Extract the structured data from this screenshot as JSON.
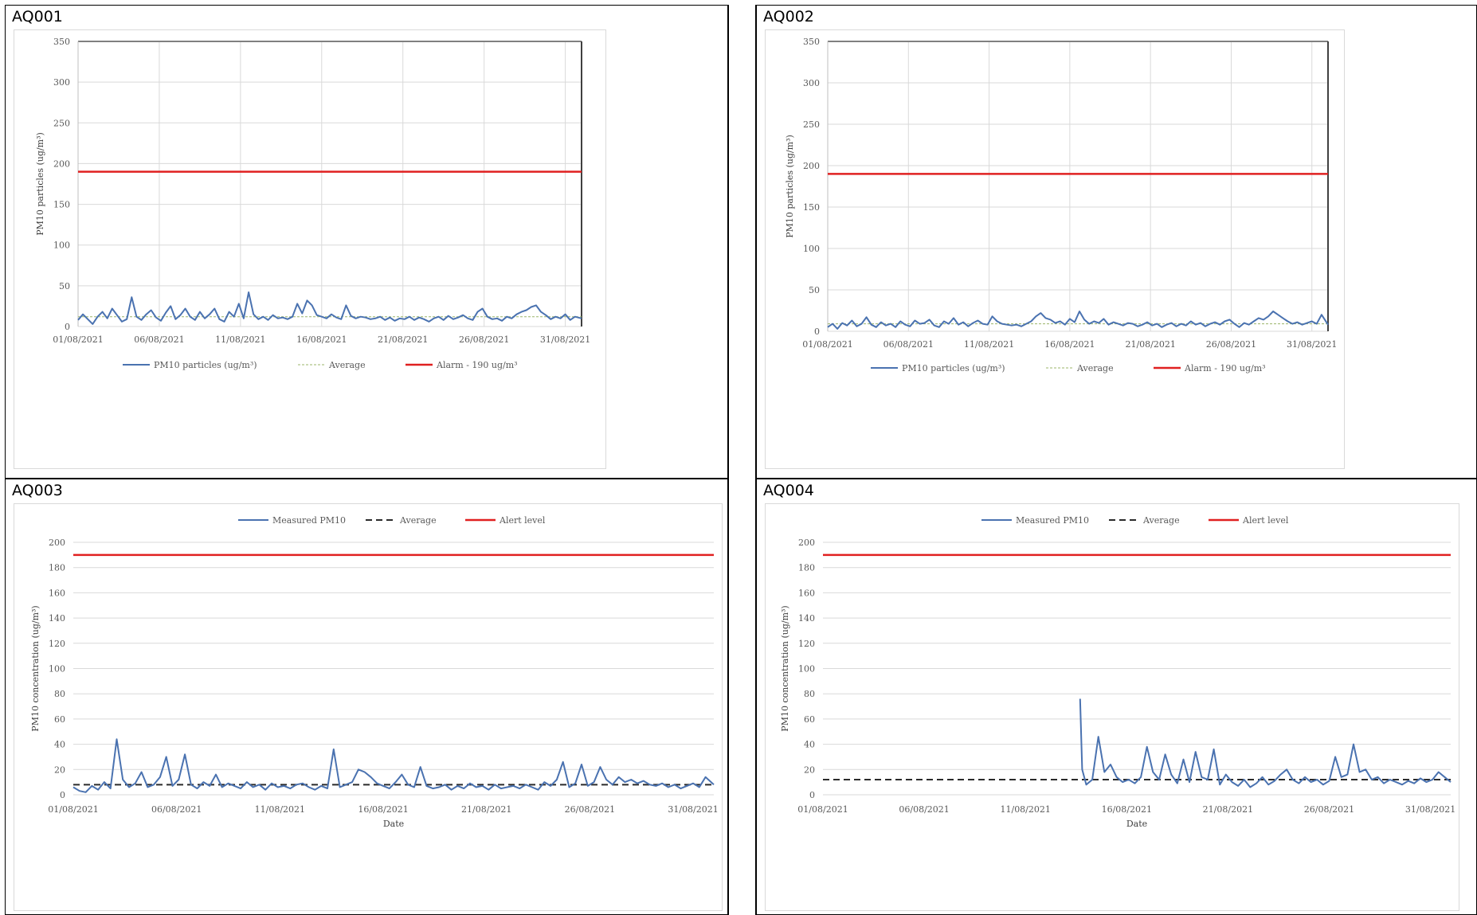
{
  "colors": {
    "series": "#4a72b0",
    "alarm": "#e02020",
    "average_dash": "#2b2b2b",
    "average_light": "#9bb56a",
    "grid": "#d9d9d9"
  },
  "chart_data": [
    {
      "label": "AQ001",
      "type": "line",
      "style": "A",
      "ylabel": "PM10 particles (ug/m³)",
      "xlabel": "",
      "ylim": [
        0,
        350
      ],
      "yticks": [
        0,
        50,
        100,
        150,
        200,
        250,
        300,
        350
      ],
      "xticks": [
        "01/08/2021",
        "06/08/2021",
        "11/08/2021",
        "16/08/2021",
        "21/08/2021",
        "26/08/2021",
        "31/08/2021"
      ],
      "x_range_days": [
        0,
        31
      ],
      "grid": true,
      "legend_position": "bottom",
      "legend": [
        "PM10 particles (ug/m³)",
        "Average",
        "Alarm - 190 ug/m³"
      ],
      "alarm": 190,
      "average": 12,
      "series": [
        {
          "name": "PM10 particles (ug/m³)",
          "x_days": [
            0,
            0.3,
            0.6,
            0.9,
            1.2,
            1.5,
            1.8,
            2.1,
            2.4,
            2.7,
            3.0,
            3.3,
            3.6,
            3.9,
            4.2,
            4.5,
            4.8,
            5.1,
            5.4,
            5.7,
            6.0,
            6.3,
            6.6,
            6.9,
            7.2,
            7.5,
            7.8,
            8.1,
            8.4,
            8.7,
            9.0,
            9.3,
            9.6,
            9.9,
            10.2,
            10.5,
            10.8,
            11.1,
            11.4,
            11.7,
            12.0,
            12.3,
            12.6,
            12.9,
            13.2,
            13.5,
            13.8,
            14.1,
            14.4,
            14.7,
            15.0,
            15.3,
            15.6,
            15.9,
            16.2,
            16.5,
            16.8,
            17.1,
            17.4,
            17.7,
            18.0,
            18.3,
            18.6,
            18.9,
            19.2,
            19.5,
            19.8,
            20.1,
            20.4,
            20.7,
            21.0,
            21.3,
            21.6,
            21.9,
            22.2,
            22.5,
            22.8,
            23.1,
            23.4,
            23.7,
            24.0,
            24.3,
            24.6,
            24.9,
            25.2,
            25.5,
            25.8,
            26.1,
            26.4,
            26.7,
            27.0,
            27.3,
            27.6,
            27.9,
            28.2,
            28.5,
            28.8,
            29.1,
            29.4,
            29.7,
            30.0,
            30.3,
            30.6,
            31.0
          ],
          "values": [
            8,
            15,
            9,
            3,
            12,
            18,
            10,
            22,
            14,
            6,
            9,
            36,
            12,
            8,
            15,
            20,
            11,
            7,
            17,
            25,
            9,
            14,
            22,
            12,
            8,
            18,
            10,
            15,
            22,
            9,
            6,
            18,
            12,
            28,
            10,
            42,
            15,
            9,
            12,
            8,
            14,
            10,
            11,
            9,
            12,
            28,
            16,
            32,
            26,
            14,
            12,
            10,
            15,
            11,
            9,
            26,
            13,
            10,
            12,
            11,
            9,
            10,
            12,
            8,
            11,
            7,
            10,
            9,
            12,
            8,
            11,
            9,
            6,
            10,
            12,
            8,
            13,
            9,
            11,
            14,
            10,
            8,
            18,
            22,
            12,
            9,
            10,
            7,
            12,
            10,
            15,
            18,
            20,
            24,
            26,
            18,
            14,
            9,
            12,
            10,
            15,
            8,
            12,
            10
          ]
        }
      ]
    },
    {
      "label": "AQ002",
      "type": "line",
      "style": "A",
      "ylabel": "PM10 particles (ug/m³)",
      "xlabel": "",
      "ylim": [
        0,
        350
      ],
      "yticks": [
        0,
        50,
        100,
        150,
        200,
        250,
        300,
        350
      ],
      "xticks": [
        "01/08/2021",
        "06/08/2021",
        "11/08/2021",
        "16/08/2021",
        "21/08/2021",
        "26/08/2021",
        "31/08/2021"
      ],
      "x_range_days": [
        0,
        31
      ],
      "grid": true,
      "legend_position": "bottom",
      "legend": [
        "PM10 particles (ug/m³)",
        "Average",
        "Alarm - 190 ug/m³"
      ],
      "alarm": 190,
      "average": 9,
      "series": [
        {
          "name": "PM10 particles (ug/m³)",
          "x_days": [
            0,
            0.3,
            0.6,
            0.9,
            1.2,
            1.5,
            1.8,
            2.1,
            2.4,
            2.7,
            3.0,
            3.3,
            3.6,
            3.9,
            4.2,
            4.5,
            4.8,
            5.1,
            5.4,
            5.7,
            6.0,
            6.3,
            6.6,
            6.9,
            7.2,
            7.5,
            7.8,
            8.1,
            8.4,
            8.7,
            9.0,
            9.3,
            9.6,
            9.9,
            10.2,
            10.5,
            10.8,
            11.1,
            11.4,
            11.7,
            12.0,
            12.3,
            12.6,
            12.9,
            13.2,
            13.5,
            13.8,
            14.1,
            14.4,
            14.7,
            15.0,
            15.3,
            15.6,
            15.9,
            16.2,
            16.5,
            16.8,
            17.1,
            17.4,
            17.7,
            18.0,
            18.3,
            18.6,
            18.9,
            19.2,
            19.5,
            19.8,
            20.1,
            20.4,
            20.7,
            21.0,
            21.3,
            21.6,
            21.9,
            22.2,
            22.5,
            22.8,
            23.1,
            23.4,
            23.7,
            24.0,
            24.3,
            24.6,
            24.9,
            25.2,
            25.5,
            25.8,
            26.1,
            26.4,
            26.7,
            27.0,
            27.3,
            27.6,
            27.9,
            28.2,
            28.5,
            28.8,
            29.1,
            29.4,
            29.7,
            30.0,
            30.3,
            30.6,
            31.0
          ],
          "values": [
            5,
            9,
            3,
            10,
            7,
            13,
            6,
            9,
            17,
            8,
            5,
            11,
            7,
            9,
            5,
            12,
            8,
            6,
            13,
            9,
            10,
            14,
            7,
            5,
            12,
            9,
            16,
            8,
            11,
            6,
            10,
            13,
            9,
            8,
            18,
            12,
            9,
            8,
            7,
            8,
            6,
            9,
            12,
            18,
            22,
            16,
            14,
            10,
            12,
            8,
            15,
            11,
            24,
            14,
            9,
            12,
            10,
            15,
            8,
            11,
            9,
            7,
            10,
            9,
            6,
            8,
            11,
            7,
            9,
            5,
            8,
            10,
            6,
            9,
            7,
            12,
            8,
            10,
            6,
            9,
            11,
            8,
            12,
            14,
            9,
            5,
            10,
            8,
            12,
            16,
            14,
            18,
            24,
            20,
            16,
            12,
            9,
            11,
            8,
            10,
            12,
            9,
            20,
            8
          ]
        }
      ]
    },
    {
      "label": "AQ003",
      "type": "line",
      "style": "B",
      "ylabel": "PM10 concentration (ug/m³)",
      "xlabel": "Date",
      "ylim": [
        0,
        200
      ],
      "yticks": [
        0,
        20,
        40,
        60,
        80,
        100,
        120,
        140,
        160,
        180,
        200
      ],
      "xticks": [
        "01/08/2021",
        "06/08/2021",
        "11/08/2021",
        "16/08/2021",
        "21/08/2021",
        "26/08/2021",
        "31/08/2021"
      ],
      "x_range_days": [
        0,
        31
      ],
      "grid": true,
      "legend_position": "top",
      "legend": [
        "Measured PM10",
        "Average",
        "Alert level"
      ],
      "alarm": 190,
      "average": 8,
      "series": [
        {
          "name": "Measured PM10",
          "x_days": [
            0,
            0.3,
            0.6,
            0.9,
            1.2,
            1.5,
            1.8,
            2.1,
            2.4,
            2.7,
            3.0,
            3.3,
            3.6,
            3.9,
            4.2,
            4.5,
            4.8,
            5.1,
            5.4,
            5.7,
            6.0,
            6.3,
            6.6,
            6.9,
            7.2,
            7.5,
            7.8,
            8.1,
            8.4,
            8.7,
            9.0,
            9.3,
            9.6,
            9.9,
            10.2,
            10.5,
            10.8,
            11.1,
            11.4,
            11.7,
            12.0,
            12.3,
            12.6,
            12.9,
            13.2,
            13.5,
            13.8,
            14.1,
            14.4,
            14.7,
            15.0,
            15.3,
            15.6,
            15.9,
            16.2,
            16.5,
            16.8,
            17.1,
            17.4,
            17.7,
            18.0,
            18.3,
            18.6,
            18.9,
            19.2,
            19.5,
            19.8,
            20.1,
            20.4,
            20.7,
            21.0,
            21.3,
            21.6,
            21.9,
            22.2,
            22.5,
            22.8,
            23.1,
            23.4,
            23.7,
            24.0,
            24.3,
            24.6,
            24.9,
            25.2,
            25.5,
            25.8,
            26.1,
            26.4,
            26.7,
            27.0,
            27.3,
            27.6,
            27.9,
            28.2,
            28.5,
            28.8,
            29.1,
            29.4,
            29.7,
            30.0,
            30.3,
            30.6,
            31.0
          ],
          "values": [
            6,
            3,
            2,
            7,
            4,
            10,
            5,
            44,
            12,
            6,
            9,
            18,
            6,
            8,
            14,
            30,
            7,
            12,
            32,
            8,
            5,
            10,
            7,
            16,
            6,
            9,
            7,
            5,
            10,
            6,
            8,
            4,
            9,
            6,
            7,
            5,
            8,
            9,
            6,
            4,
            7,
            5,
            36,
            6,
            8,
            10,
            20,
            18,
            14,
            9,
            7,
            5,
            10,
            16,
            8,
            6,
            22,
            7,
            5,
            6,
            8,
            4,
            7,
            5,
            9,
            6,
            7,
            4,
            8,
            5,
            6,
            7,
            5,
            8,
            6,
            4,
            10,
            7,
            12,
            26,
            6,
            9,
            24,
            7,
            10,
            22,
            12,
            8,
            14,
            10,
            12,
            9,
            11,
            8,
            7,
            9,
            6,
            8,
            5,
            7,
            9,
            6,
            14,
            8
          ]
        }
      ]
    },
    {
      "label": "AQ004",
      "type": "line",
      "style": "B",
      "ylabel": "PM10 concentration (ug/m³)",
      "xlabel": "Date",
      "ylim": [
        0,
        200
      ],
      "yticks": [
        0,
        20,
        40,
        60,
        80,
        100,
        120,
        140,
        160,
        180,
        200
      ],
      "xticks": [
        "01/08/2021",
        "06/08/2021",
        "11/08/2021",
        "16/08/2021",
        "21/08/2021",
        "26/08/2021",
        "31/08/2021"
      ],
      "x_range_days": [
        0,
        31
      ],
      "grid": true,
      "legend_position": "top",
      "legend": [
        "Measured PM10",
        "Average",
        "Alert level"
      ],
      "alarm": 190,
      "average": 12,
      "series": [
        {
          "name": "Measured PM10",
          "x_days": [
            12.7,
            12.8,
            13.0,
            13.3,
            13.6,
            13.9,
            14.2,
            14.5,
            14.8,
            15.1,
            15.4,
            15.7,
            16.0,
            16.3,
            16.6,
            16.9,
            17.2,
            17.5,
            17.8,
            18.1,
            18.4,
            18.7,
            19.0,
            19.3,
            19.6,
            19.9,
            20.2,
            20.5,
            20.8,
            21.1,
            21.4,
            21.7,
            22.0,
            22.3,
            22.6,
            22.9,
            23.2,
            23.5,
            23.8,
            24.1,
            24.4,
            24.7,
            25.0,
            25.3,
            25.6,
            25.9,
            26.2,
            26.5,
            26.8,
            27.1,
            27.4,
            27.7,
            28.0,
            28.3,
            28.6,
            28.9,
            29.2,
            29.5,
            29.8,
            30.1,
            30.4,
            30.7,
            31.0
          ],
          "values": [
            76,
            20,
            8,
            12,
            46,
            18,
            24,
            14,
            10,
            12,
            9,
            14,
            38,
            18,
            12,
            32,
            16,
            9,
            28,
            10,
            34,
            14,
            12,
            36,
            8,
            16,
            10,
            7,
            12,
            6,
            9,
            14,
            8,
            11,
            16,
            20,
            12,
            9,
            14,
            10,
            12,
            8,
            11,
            30,
            14,
            16,
            40,
            18,
            20,
            12,
            14,
            9,
            12,
            10,
            8,
            11,
            9,
            13,
            10,
            12,
            18,
            14,
            10
          ]
        }
      ]
    }
  ]
}
